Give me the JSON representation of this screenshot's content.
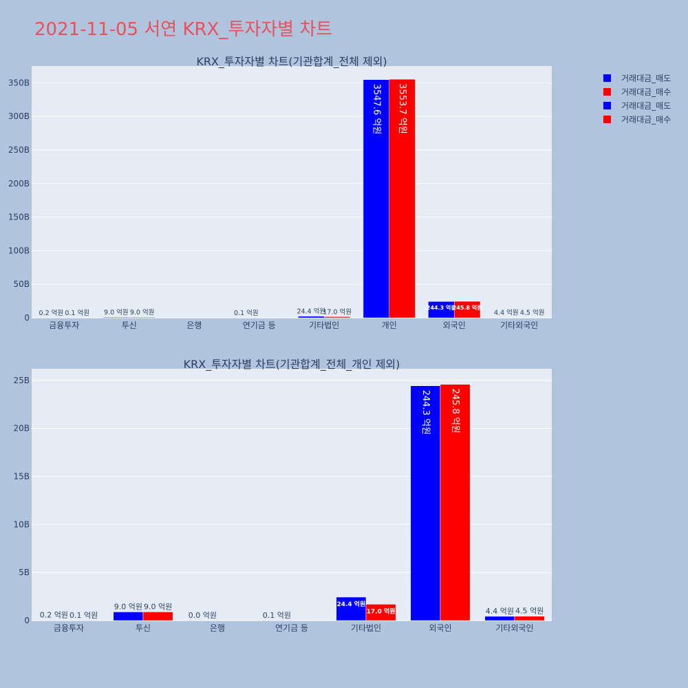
{
  "page_title": "2021-11-05 서연 KRX_투자자별 차트",
  "colors": {
    "sell": "#0000ff",
    "buy": "#ff0000",
    "title": "#e8505b",
    "paper": "#b0c4de",
    "plot_bg": "#e5ecf6",
    "text": "#2a3f5f"
  },
  "legend": {
    "placement": "top-right",
    "items": [
      {
        "label": "거래대금_매도",
        "color": "#0000ff"
      },
      {
        "label": "거래대금_매수",
        "color": "#ff0000"
      },
      {
        "label": "거래대금_매도",
        "color": "#0000ff"
      },
      {
        "label": "거래대금_매수",
        "color": "#ff0000"
      }
    ]
  },
  "chart_data": [
    {
      "type": "bar",
      "title": "KRX_투자자별 차트(기관합계_전체 제외)",
      "categories": [
        "금융투자",
        "투신",
        "은행",
        "연기금 등",
        "기타법인",
        "개인",
        "외국인",
        "기타외국인"
      ],
      "ylim": [
        0,
        375
      ],
      "yticks": [
        0,
        50,
        100,
        150,
        200,
        250,
        300,
        350
      ],
      "ytick_labels": [
        "0",
        "50B",
        "100B",
        "150B",
        "200B",
        "250B",
        "300B",
        "350B"
      ],
      "grid": true,
      "series": [
        {
          "name": "거래대금_매도",
          "color": "#0000ff",
          "values": [
            0.02,
            0.9,
            null,
            0.01,
            2.44,
            354.76,
            24.43,
            0.44
          ],
          "labels": [
            "0.2 억원",
            "9.0 억원",
            "",
            "0.1 억원",
            "24.4 억원",
            "3547.6 억원",
            "244.3 억원",
            "4.4 억원"
          ]
        },
        {
          "name": "거래대금_매수",
          "color": "#ff0000",
          "values": [
            0.01,
            0.9,
            null,
            null,
            1.7,
            355.37,
            24.58,
            0.45
          ],
          "labels": [
            "0.1 억원",
            "9.0 억원",
            "",
            "",
            "17.0 억원",
            "3553.7 억원",
            "245.8 억원",
            "4.5 억원"
          ]
        }
      ]
    },
    {
      "type": "bar",
      "title": "KRX_투자자별 차트(기관합계_전체_개인 제외)",
      "categories": [
        "금융투자",
        "투신",
        "은행",
        "연기금 등",
        "기타법인",
        "외국인",
        "기타외국인"
      ],
      "ylim": [
        0,
        26.2
      ],
      "yticks": [
        0,
        5,
        10,
        15,
        20,
        25
      ],
      "ytick_labels": [
        "0",
        "5B",
        "10B",
        "15B",
        "20B",
        "25B"
      ],
      "grid": true,
      "series": [
        {
          "name": "거래대금_매도",
          "color": "#0000ff",
          "values": [
            0.02,
            0.9,
            0.0,
            0.01,
            2.44,
            24.43,
            0.44
          ],
          "labels": [
            "0.2 억원",
            "9.0 억원",
            "0.0 억원",
            "0.1 억원",
            "24.4 억원",
            "244.3 억원",
            "4.4 억원"
          ]
        },
        {
          "name": "거래대금_매수",
          "color": "#ff0000",
          "values": [
            0.01,
            0.9,
            null,
            null,
            1.7,
            24.58,
            0.45
          ],
          "labels": [
            "0.1 억원",
            "9.0 억원",
            "",
            "",
            "17.0 억원",
            "245.8 억원",
            "4.5 억원"
          ]
        }
      ]
    }
  ]
}
